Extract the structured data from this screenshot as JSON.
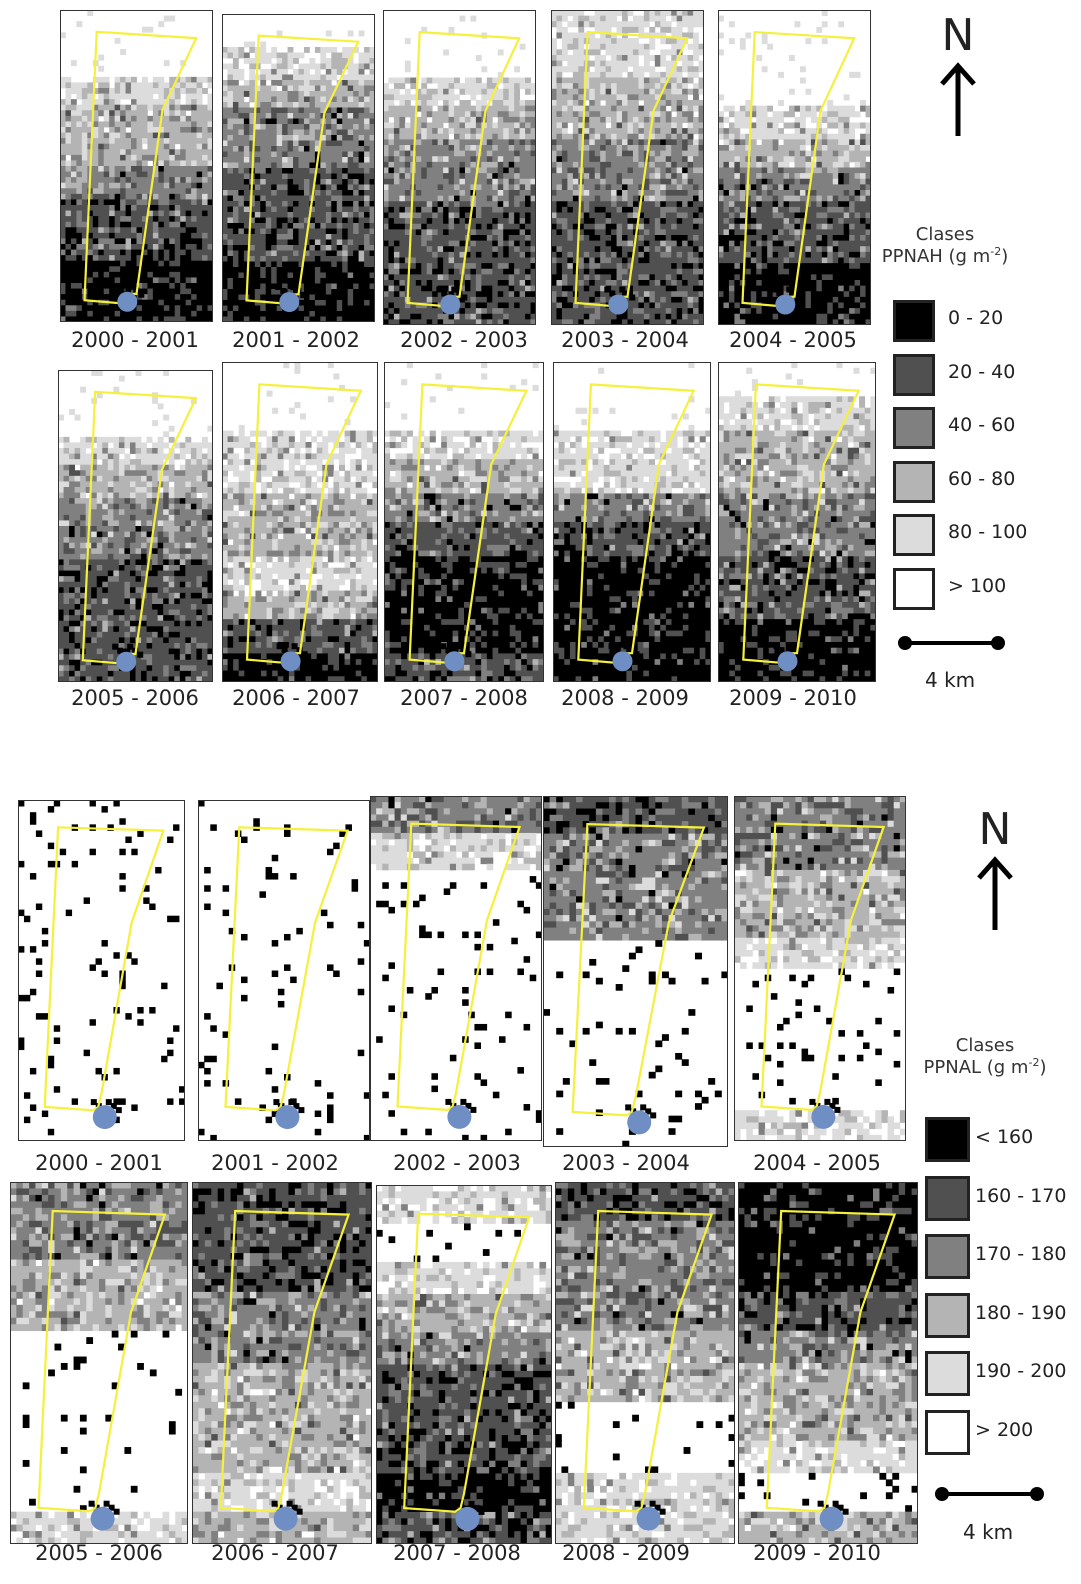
{
  "colors": {
    "class_1": "#000000",
    "class_2": "#505050",
    "class_3": "#808080",
    "class_4": "#b4b4b4",
    "class_5": "#dcdcdc",
    "class_6": "#ffffff",
    "boundary": "#f5f03c",
    "station": "#6f8fc4"
  },
  "top": {
    "north_label": "N",
    "legend": {
      "title_line1": "Clases",
      "title_var": "PPNAH",
      "title_unit_open": " (g m",
      "title_unit_sup": "-2",
      "title_unit_close": ")",
      "classes": [
        "0 - 20",
        "20 - 40",
        "40 - 60",
        "60 - 80",
        "80 - 100",
        "> 100"
      ]
    },
    "scale_label": "4 km",
    "panels": [
      {
        "label": "2000 - 2001",
        "levels": [
          6,
          6,
          5,
          4,
          4,
          3,
          2,
          2,
          1,
          1
        ]
      },
      {
        "label": "2001 - 2002",
        "levels": [
          6,
          5,
          4,
          3,
          3,
          2,
          2,
          2,
          1,
          1
        ]
      },
      {
        "label": "2002 - 2003",
        "levels": [
          6,
          6,
          5,
          4,
          3,
          3,
          2,
          2,
          2,
          2
        ]
      },
      {
        "label": "2003 - 2004",
        "levels": [
          5,
          5,
          4,
          4,
          3,
          3,
          2,
          2,
          2,
          2
        ]
      },
      {
        "label": "2004 - 2005",
        "levels": [
          6,
          6,
          6,
          5,
          4,
          3,
          2,
          2,
          1,
          1
        ]
      },
      {
        "label": "2005 - 2006",
        "levels": [
          6,
          6,
          5,
          4,
          3,
          3,
          2,
          2,
          2,
          2
        ]
      },
      {
        "label": "2006 - 2007",
        "levels": [
          6,
          6,
          5,
          5,
          4,
          4,
          5,
          4,
          2,
          1
        ]
      },
      {
        "label": "2007 - 2008",
        "levels": [
          6,
          6,
          5,
          4,
          3,
          2,
          1,
          1,
          1,
          2
        ]
      },
      {
        "label": "2008 - 2009",
        "levels": [
          6,
          6,
          5,
          5,
          3,
          2,
          1,
          1,
          1,
          1
        ]
      },
      {
        "label": "2009 - 2010",
        "levels": [
          6,
          5,
          4,
          4,
          3,
          3,
          2,
          2,
          1,
          1
        ]
      }
    ]
  },
  "bottom": {
    "north_label": "N",
    "legend": {
      "title_line1": "Clases",
      "title_var": "PPNAL",
      "title_unit_open": "  (g m",
      "title_unit_sup": "-2",
      "title_unit_close": ")",
      "classes": [
        "< 160",
        "160 - 170",
        "170 - 180",
        "180 - 190",
        "190 - 200",
        "> 200"
      ]
    },
    "scale_label": "4 km",
    "panels": [
      {
        "label": "2000 - 2001",
        "levels": [
          6,
          6,
          6,
          6,
          6,
          6,
          6,
          6,
          6,
          6
        ]
      },
      {
        "label": "2001 - 2002",
        "levels": [
          6,
          6,
          6,
          6,
          6,
          6,
          6,
          6,
          6,
          6
        ]
      },
      {
        "label": "2002 - 2003",
        "levels": [
          3,
          5,
          6,
          6,
          6,
          6,
          6,
          6,
          6,
          6
        ]
      },
      {
        "label": "2003 - 2004",
        "levels": [
          2,
          3,
          3,
          3,
          6,
          6,
          6,
          6,
          6,
          6
        ]
      },
      {
        "label": "2004 - 2005",
        "levels": [
          3,
          3,
          4,
          4,
          5,
          6,
          6,
          6,
          6,
          5
        ]
      },
      {
        "label": "2005 - 2006",
        "levels": [
          3,
          3,
          4,
          4,
          6,
          6,
          6,
          6,
          6,
          5
        ]
      },
      {
        "label": "2006 - 2007",
        "levels": [
          2,
          2,
          2,
          3,
          3,
          4,
          4,
          4,
          5,
          4
        ]
      },
      {
        "label": "2007 - 2008",
        "levels": [
          5,
          6,
          5,
          4,
          3,
          2,
          2,
          2,
          1,
          2
        ]
      },
      {
        "label": "2008 - 2009",
        "levels": [
          2,
          3,
          3,
          3,
          4,
          4,
          6,
          6,
          5,
          5
        ]
      },
      {
        "label": "2009 - 2010",
        "levels": [
          1,
          1,
          1,
          2,
          3,
          4,
          4,
          5,
          6,
          4
        ]
      }
    ]
  }
}
